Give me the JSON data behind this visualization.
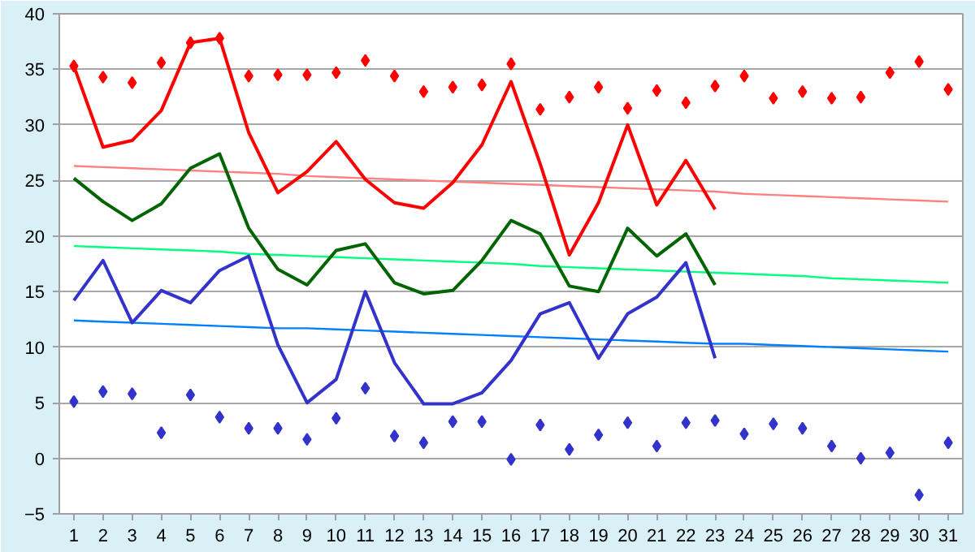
{
  "chart_data": {
    "type": "line",
    "x": [
      1,
      2,
      3,
      4,
      5,
      6,
      7,
      8,
      9,
      10,
      11,
      12,
      13,
      14,
      15,
      16,
      17,
      18,
      19,
      20,
      21,
      22,
      23,
      24,
      25,
      26,
      27,
      28,
      29,
      30,
      31
    ],
    "xlim": [
      0.5,
      31.5
    ],
    "xticks": [
      1,
      2,
      3,
      4,
      5,
      6,
      7,
      8,
      9,
      10,
      11,
      12,
      13,
      14,
      15,
      16,
      17,
      18,
      19,
      20,
      21,
      22,
      23,
      24,
      25,
      26,
      27,
      28,
      29,
      30,
      31
    ],
    "ylim": [
      -5,
      40
    ],
    "yticks": [
      -5,
      0,
      5,
      10,
      15,
      20,
      25,
      30,
      35,
      40
    ],
    "grid": "y",
    "line_style": "solid",
    "series": [
      {
        "marker": "none",
        "color": "#ff8080",
        "values": [
          26.3,
          26.2,
          26.1,
          26.0,
          25.9,
          25.8,
          25.7,
          25.6,
          25.4,
          25.3,
          25.2,
          25.1,
          25.0,
          24.9,
          24.8,
          24.7,
          24.6,
          24.5,
          24.4,
          24.3,
          24.2,
          24.1,
          24.0,
          23.8,
          23.7,
          23.6,
          23.5,
          23.4,
          23.3,
          23.2,
          23.1
        ]
      },
      {
        "marker": "none",
        "color": "#00ff80",
        "values": [
          19.1,
          19.0,
          18.9,
          18.8,
          18.7,
          18.6,
          18.4,
          18.3,
          18.2,
          18.1,
          18.0,
          17.9,
          17.8,
          17.7,
          17.6,
          17.5,
          17.3,
          17.2,
          17.1,
          17.0,
          16.9,
          16.8,
          16.7,
          16.6,
          16.5,
          16.4,
          16.2,
          16.1,
          16.0,
          15.9,
          15.8
        ]
      },
      {
        "marker": "none",
        "color": "#0080ff",
        "values": [
          12.4,
          12.3,
          12.2,
          12.1,
          12.0,
          11.9,
          11.8,
          11.7,
          11.7,
          11.6,
          11.5,
          11.4,
          11.3,
          11.2,
          11.1,
          11.0,
          10.9,
          10.8,
          10.7,
          10.6,
          10.5,
          10.4,
          10.3,
          10.3,
          10.2,
          10.1,
          10.0,
          9.9,
          9.8,
          9.7,
          9.6
        ]
      },
      {
        "marker": "none",
        "color": "#ff0000",
        "values": [
          35.3,
          28,
          28.6,
          31.3,
          37.4,
          37.8,
          29.3,
          23.9,
          25.8,
          28.5,
          25.1,
          23,
          22.5,
          24.8,
          28.2,
          33.9,
          26.5,
          18.3,
          23,
          30,
          22.8,
          26.8,
          22.4,
          null,
          null,
          null,
          null,
          null,
          null,
          null,
          null
        ]
      },
      {
        "marker": "none",
        "color": "#006400",
        "values": [
          25.2,
          23.1,
          21.4,
          22.9,
          26.1,
          27.4,
          20.7,
          17,
          15.6,
          18.7,
          19.3,
          15.8,
          14.8,
          15.1,
          17.8,
          21.4,
          20.2,
          15.5,
          15,
          20.7,
          18.2,
          20.2,
          15.6,
          null,
          null,
          null,
          null,
          null,
          null,
          null,
          null
        ]
      },
      {
        "marker": "none",
        "color": "#3333cc",
        "values": [
          14.2,
          17.8,
          12.2,
          15.1,
          14,
          16.9,
          18.2,
          10.2,
          5,
          7.1,
          15,
          8.6,
          4.9,
          4.9,
          5.9,
          8.8,
          13,
          14,
          9,
          13,
          14.5,
          17.6,
          9,
          null,
          null,
          null,
          null,
          null,
          null,
          null,
          null
        ]
      },
      {
        "type": "scatter",
        "marker": "diamond",
        "color": "#ff0000",
        "values": [
          35.3,
          34.3,
          33.8,
          35.6,
          37.4,
          37.8,
          34.4,
          34.5,
          34.5,
          34.7,
          35.8,
          34.4,
          33,
          33.4,
          33.6,
          35.5,
          31.4,
          32.5,
          33.4,
          31.5,
          33.1,
          32,
          33.5,
          34.4,
          32.4,
          33,
          32.4,
          32.5,
          34.7,
          35.7,
          33.2
        ]
      },
      {
        "type": "scatter",
        "marker": "diamond",
        "color": "#3333cc",
        "values": [
          5.1,
          6,
          5.8,
          2.3,
          5.7,
          3.7,
          2.7,
          2.7,
          1.7,
          3.6,
          6.3,
          2,
          1.4,
          3.3,
          3.3,
          -0.1,
          3,
          0.8,
          2.1,
          3.2,
          1.1,
          3.2,
          3.4,
          2.2,
          3.1,
          2.7,
          1.1,
          0,
          0.5,
          -3.3,
          1.4
        ]
      }
    ]
  }
}
